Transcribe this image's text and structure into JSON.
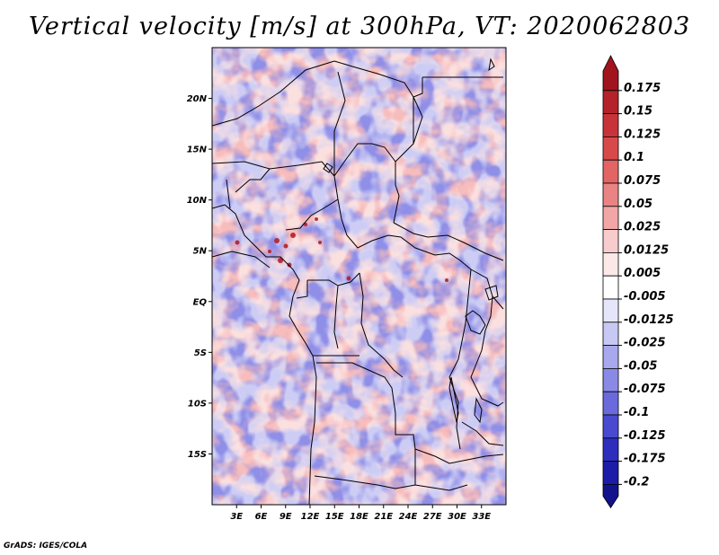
{
  "title": "Vertical velocity [m/s] at 300hPa, VT: 2020062803",
  "footer": "GrADS: IGES/COLA",
  "map": {
    "lon_range": [
      0,
      36
    ],
    "lat_range": [
      -20,
      25
    ],
    "lat_ticks": [
      {
        "value": 20,
        "label": "20N"
      },
      {
        "value": 15,
        "label": "15N"
      },
      {
        "value": 10,
        "label": "10N"
      },
      {
        "value": 5,
        "label": "5N"
      },
      {
        "value": 0,
        "label": "EQ"
      },
      {
        "value": -5,
        "label": "5S"
      },
      {
        "value": -10,
        "label": "10S"
      },
      {
        "value": -15,
        "label": "15S"
      }
    ],
    "lon_ticks": [
      {
        "value": 3,
        "label": "3E"
      },
      {
        "value": 6,
        "label": "6E"
      },
      {
        "value": 9,
        "label": "9E"
      },
      {
        "value": 12,
        "label": "12E"
      },
      {
        "value": 15,
        "label": "15E"
      },
      {
        "value": 18,
        "label": "18E"
      },
      {
        "value": 21,
        "label": "21E"
      },
      {
        "value": 24,
        "label": "24E"
      },
      {
        "value": 27,
        "label": "27E"
      },
      {
        "value": 30,
        "label": "30E"
      },
      {
        "value": 33,
        "label": "33E"
      }
    ]
  },
  "colorbar": {
    "labels": [
      "0.175",
      "0.15",
      "0.125",
      "0.1",
      "0.075",
      "0.05",
      "0.025",
      "0.0125",
      "0.005",
      "-0.005",
      "-0.0125",
      "-0.025",
      "-0.05",
      "-0.075",
      "-0.1",
      "-0.125",
      "-0.175",
      "-0.2"
    ],
    "colors": [
      "#a0141e",
      "#b4232a",
      "#c8333a",
      "#d84a4a",
      "#e26464",
      "#ea8484",
      "#f2a6a6",
      "#f8cccc",
      "#fde8e8",
      "#ffffff",
      "#e6e6fa",
      "#c8c8f4",
      "#a8a8ee",
      "#8a8ae6",
      "#6a6adc",
      "#4a4ad0",
      "#2e2ebe",
      "#1c1ca8",
      "#12128c"
    ]
  }
}
